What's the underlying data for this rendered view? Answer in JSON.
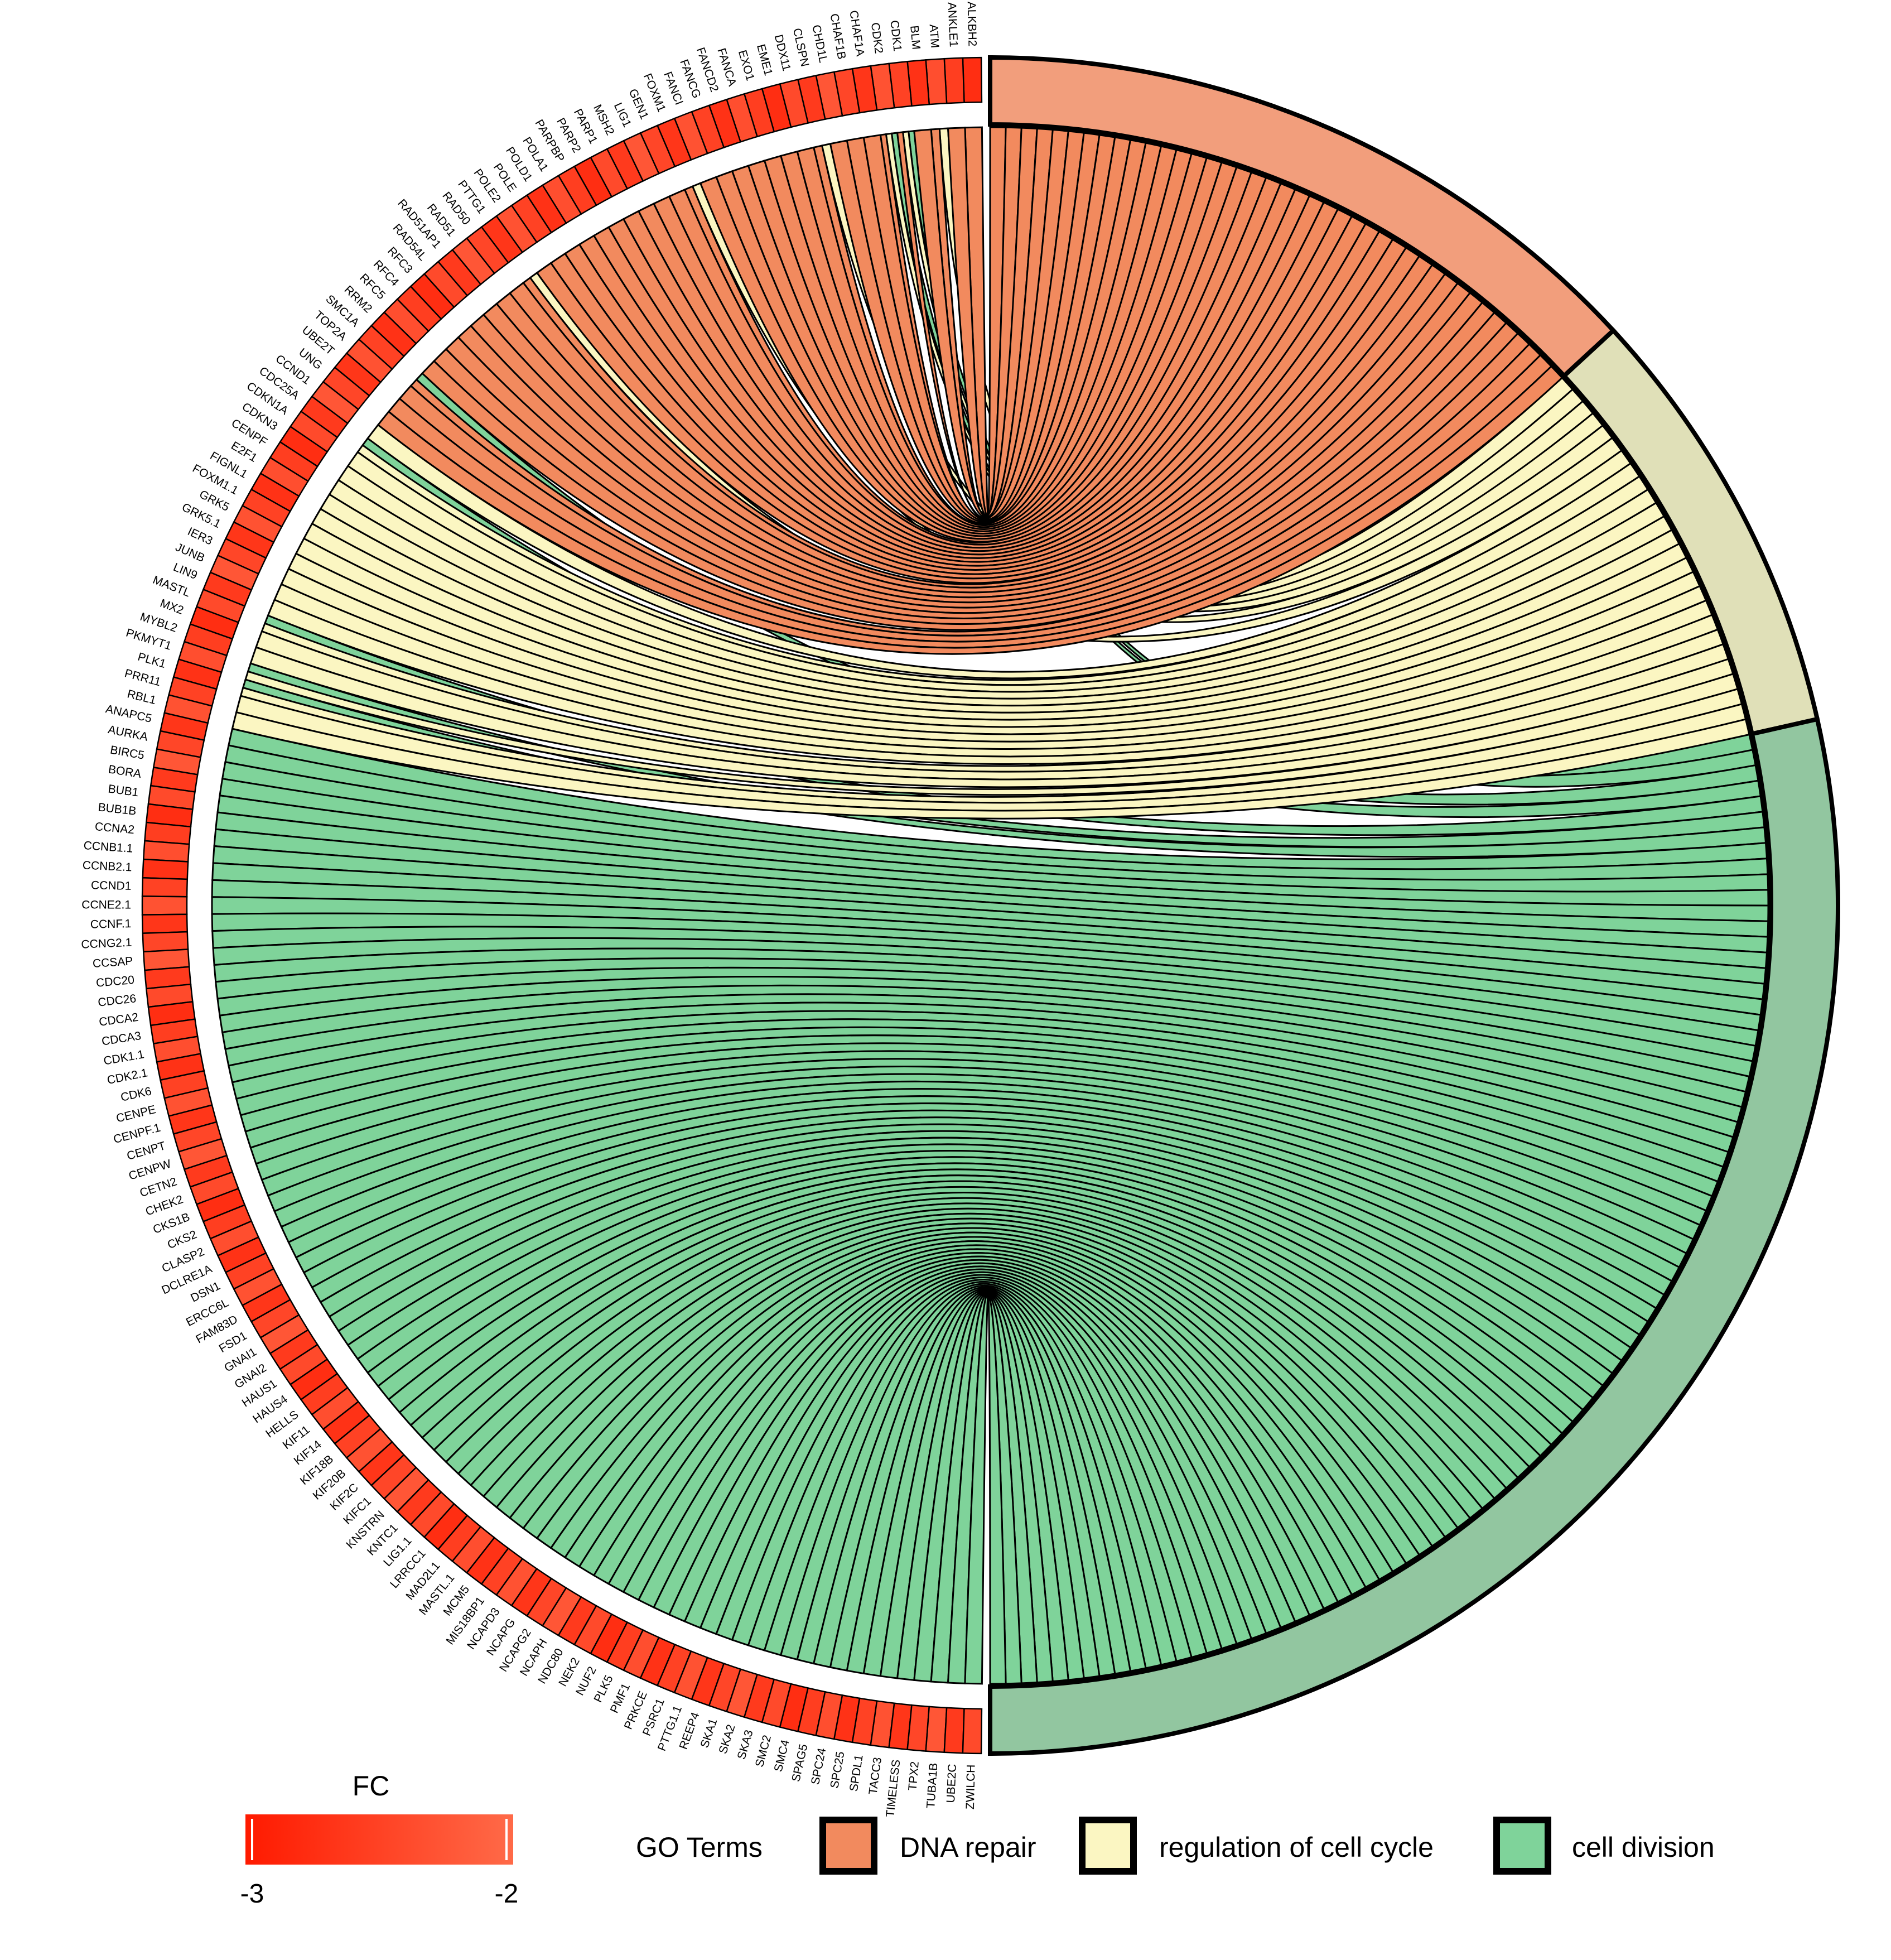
{
  "chart_data": {
    "type": "chord",
    "title": "",
    "genes": [
      {
        "name": "ALKBH2",
        "terms": [
          "DNA repair"
        ]
      },
      {
        "name": "ANKLE1",
        "terms": [
          "DNA repair"
        ]
      },
      {
        "name": "ATM",
        "terms": [
          "DNA repair",
          "regulation of cell cycle"
        ]
      },
      {
        "name": "BLM",
        "terms": [
          "DNA repair"
        ]
      },
      {
        "name": "CDK1",
        "terms": [
          "DNA repair",
          "regulation of cell cycle",
          "cell division"
        ]
      },
      {
        "name": "CDK2",
        "terms": [
          "DNA repair",
          "regulation of cell cycle",
          "cell division"
        ]
      },
      {
        "name": "CHAF1A",
        "terms": [
          "DNA repair"
        ]
      },
      {
        "name": "CHAF1B",
        "terms": [
          "DNA repair"
        ]
      },
      {
        "name": "CHD1L",
        "terms": [
          "DNA repair"
        ]
      },
      {
        "name": "CLSPN",
        "terms": [
          "DNA repair",
          "regulation of cell cycle"
        ]
      },
      {
        "name": "DDX11",
        "terms": [
          "DNA repair"
        ]
      },
      {
        "name": "EME1",
        "terms": [
          "DNA repair"
        ]
      },
      {
        "name": "EXO1",
        "terms": [
          "DNA repair"
        ]
      },
      {
        "name": "FANCA",
        "terms": [
          "DNA repair"
        ]
      },
      {
        "name": "FANCD2",
        "terms": [
          "DNA repair"
        ]
      },
      {
        "name": "FANCG",
        "terms": [
          "DNA repair"
        ]
      },
      {
        "name": "FANCI",
        "terms": [
          "DNA repair"
        ]
      },
      {
        "name": "FOXM1",
        "terms": [
          "DNA repair",
          "regulation of cell cycle"
        ]
      },
      {
        "name": "GEN1",
        "terms": [
          "DNA repair"
        ]
      },
      {
        "name": "LIG1",
        "terms": [
          "DNA repair"
        ]
      },
      {
        "name": "MSH2",
        "terms": [
          "DNA repair"
        ]
      },
      {
        "name": "PARP1",
        "terms": [
          "DNA repair"
        ]
      },
      {
        "name": "PARP2",
        "terms": [
          "DNA repair"
        ]
      },
      {
        "name": "PARPBP",
        "terms": [
          "DNA repair"
        ]
      },
      {
        "name": "POLA1",
        "terms": [
          "DNA repair"
        ]
      },
      {
        "name": "POLD1",
        "terms": [
          "DNA repair"
        ]
      },
      {
        "name": "POLE",
        "terms": [
          "DNA repair"
        ]
      },
      {
        "name": "POLE2",
        "terms": [
          "DNA repair"
        ]
      },
      {
        "name": "PTTG1",
        "terms": [
          "DNA repair",
          "regulation of cell cycle"
        ]
      },
      {
        "name": "RAD50",
        "terms": [
          "DNA repair"
        ]
      },
      {
        "name": "RAD51",
        "terms": [
          "DNA repair"
        ]
      },
      {
        "name": "RAD51AP1",
        "terms": [
          "DNA repair"
        ]
      },
      {
        "name": "RAD54L",
        "terms": [
          "DNA repair"
        ]
      },
      {
        "name": "RFC3",
        "terms": [
          "DNA repair"
        ]
      },
      {
        "name": "RFC4",
        "terms": [
          "DNA repair"
        ]
      },
      {
        "name": "RFC5",
        "terms": [
          "DNA repair"
        ]
      },
      {
        "name": "RRM2",
        "terms": [
          "DNA repair"
        ]
      },
      {
        "name": "SMC1A",
        "terms": [
          "DNA repair",
          "cell division"
        ]
      },
      {
        "name": "TOP2A",
        "terms": [
          "DNA repair"
        ]
      },
      {
        "name": "UBE2T",
        "terms": [
          "DNA repair"
        ]
      },
      {
        "name": "UNG",
        "terms": [
          "DNA repair"
        ]
      },
      {
        "name": "CCND1",
        "terms": [
          "regulation of cell cycle"
        ]
      },
      {
        "name": "CDC25A",
        "terms": [
          "regulation of cell cycle",
          "cell division"
        ]
      },
      {
        "name": "CDKN1A",
        "terms": [
          "regulation of cell cycle"
        ]
      },
      {
        "name": "CDKN3",
        "terms": [
          "regulation of cell cycle"
        ]
      },
      {
        "name": "CENPF",
        "terms": [
          "regulation of cell cycle"
        ]
      },
      {
        "name": "E2F1",
        "terms": [
          "regulation of cell cycle"
        ]
      },
      {
        "name": "FIGNL1",
        "terms": [
          "regulation of cell cycle"
        ]
      },
      {
        "name": "FOXM1.1",
        "terms": [
          "regulation of cell cycle"
        ]
      },
      {
        "name": "GRK5",
        "terms": [
          "regulation of cell cycle"
        ]
      },
      {
        "name": "GRK5.1",
        "terms": [
          "regulation of cell cycle"
        ]
      },
      {
        "name": "IER3",
        "terms": [
          "regulation of cell cycle"
        ]
      },
      {
        "name": "JUNB",
        "terms": [
          "regulation of cell cycle"
        ]
      },
      {
        "name": "LIN9",
        "terms": [
          "regulation of cell cycle"
        ]
      },
      {
        "name": "MASTL",
        "terms": [
          "regulation of cell cycle",
          "cell division"
        ]
      },
      {
        "name": "MX2",
        "terms": [
          "regulation of cell cycle"
        ]
      },
      {
        "name": "MYBL2",
        "terms": [
          "regulation of cell cycle"
        ]
      },
      {
        "name": "PKMYT1",
        "terms": [
          "regulation of cell cycle",
          "cell division"
        ]
      },
      {
        "name": "PLK1",
        "terms": [
          "regulation of cell cycle",
          "cell division"
        ]
      },
      {
        "name": "PRR11",
        "terms": [
          "regulation of cell cycle"
        ]
      },
      {
        "name": "RBL1",
        "terms": [
          "regulation of cell cycle"
        ]
      },
      {
        "name": "ANAPC5",
        "terms": [
          "cell division"
        ]
      },
      {
        "name": "AURKA",
        "terms": [
          "cell division"
        ]
      },
      {
        "name": "BIRC5",
        "terms": [
          "cell division"
        ]
      },
      {
        "name": "BORA",
        "terms": [
          "cell division"
        ]
      },
      {
        "name": "BUB1",
        "terms": [
          "cell division"
        ]
      },
      {
        "name": "BUB1B",
        "terms": [
          "cell division"
        ]
      },
      {
        "name": "CCNA2",
        "terms": [
          "cell division"
        ]
      },
      {
        "name": "CCNB1.1",
        "terms": [
          "cell division"
        ]
      },
      {
        "name": "CCNB2.1",
        "terms": [
          "cell division"
        ]
      },
      {
        "name": "CCND1",
        "terms": [
          "cell division"
        ]
      },
      {
        "name": "CCNE2.1",
        "terms": [
          "cell division"
        ]
      },
      {
        "name": "CCNF.1",
        "terms": [
          "cell division"
        ]
      },
      {
        "name": "CCNG2.1",
        "terms": [
          "cell division"
        ]
      },
      {
        "name": "CCSAP",
        "terms": [
          "cell division"
        ]
      },
      {
        "name": "CDC20",
        "terms": [
          "cell division"
        ]
      },
      {
        "name": "CDC26",
        "terms": [
          "cell division"
        ]
      },
      {
        "name": "CDCA2",
        "terms": [
          "cell division"
        ]
      },
      {
        "name": "CDCA3",
        "terms": [
          "cell division"
        ]
      },
      {
        "name": "CDK1.1",
        "terms": [
          "cell division"
        ]
      },
      {
        "name": "CDK2.1",
        "terms": [
          "cell division"
        ]
      },
      {
        "name": "CDK6",
        "terms": [
          "cell division"
        ]
      },
      {
        "name": "CENPE",
        "terms": [
          "cell division"
        ]
      },
      {
        "name": "CENPF.1",
        "terms": [
          "cell division"
        ]
      },
      {
        "name": "CENPT",
        "terms": [
          "cell division"
        ]
      },
      {
        "name": "CENPW",
        "terms": [
          "cell division"
        ]
      },
      {
        "name": "CETN2",
        "terms": [
          "cell division"
        ]
      },
      {
        "name": "CHEK2",
        "terms": [
          "cell division"
        ]
      },
      {
        "name": "CKS1B",
        "terms": [
          "cell division"
        ]
      },
      {
        "name": "CKS2",
        "terms": [
          "cell division"
        ]
      },
      {
        "name": "CLASP2",
        "terms": [
          "cell division"
        ]
      },
      {
        "name": "DCLRE1A",
        "terms": [
          "cell division"
        ]
      },
      {
        "name": "DSN1",
        "terms": [
          "cell division"
        ]
      },
      {
        "name": "ERCC6L",
        "terms": [
          "cell division"
        ]
      },
      {
        "name": "FAM83D",
        "terms": [
          "cell division"
        ]
      },
      {
        "name": "FSD1",
        "terms": [
          "cell division"
        ]
      },
      {
        "name": "GNAI1",
        "terms": [
          "cell division"
        ]
      },
      {
        "name": "GNAI2",
        "terms": [
          "cell division"
        ]
      },
      {
        "name": "HAUS1",
        "terms": [
          "cell division"
        ]
      },
      {
        "name": "HAUS4",
        "terms": [
          "cell division"
        ]
      },
      {
        "name": "HELLS",
        "terms": [
          "cell division"
        ]
      },
      {
        "name": "KIF11",
        "terms": [
          "cell division"
        ]
      },
      {
        "name": "KIF14",
        "terms": [
          "cell division"
        ]
      },
      {
        "name": "KIF18B",
        "terms": [
          "cell division"
        ]
      },
      {
        "name": "KIF20B",
        "terms": [
          "cell division"
        ]
      },
      {
        "name": "KIF2C",
        "terms": [
          "cell division"
        ]
      },
      {
        "name": "KIFC1",
        "terms": [
          "cell division"
        ]
      },
      {
        "name": "KNSTRN",
        "terms": [
          "cell division"
        ]
      },
      {
        "name": "KNTC1",
        "terms": [
          "cell division"
        ]
      },
      {
        "name": "LIG1.1",
        "terms": [
          "cell division"
        ]
      },
      {
        "name": "LRRCC1",
        "terms": [
          "cell division"
        ]
      },
      {
        "name": "MAD2L1",
        "terms": [
          "cell division"
        ]
      },
      {
        "name": "MASTL.1",
        "terms": [
          "cell division"
        ]
      },
      {
        "name": "MCM5",
        "terms": [
          "cell division"
        ]
      },
      {
        "name": "MIS18BP1",
        "terms": [
          "cell division"
        ]
      },
      {
        "name": "NCAPD3",
        "terms": [
          "cell division"
        ]
      },
      {
        "name": "NCAPG",
        "terms": [
          "cell division"
        ]
      },
      {
        "name": "NCAPG2",
        "terms": [
          "cell division"
        ]
      },
      {
        "name": "NCAPH",
        "terms": [
          "cell division"
        ]
      },
      {
        "name": "NDC80",
        "terms": [
          "cell division"
        ]
      },
      {
        "name": "NEK2",
        "terms": [
          "cell division"
        ]
      },
      {
        "name": "NUF2",
        "terms": [
          "cell division"
        ]
      },
      {
        "name": "PLK5",
        "terms": [
          "cell division"
        ]
      },
      {
        "name": "PMF1",
        "terms": [
          "cell division"
        ]
      },
      {
        "name": "PRKCE",
        "terms": [
          "cell division"
        ]
      },
      {
        "name": "PSRC1",
        "terms": [
          "cell division"
        ]
      },
      {
        "name": "PTTG1.1",
        "terms": [
          "cell division"
        ]
      },
      {
        "name": "REEP4",
        "terms": [
          "cell division"
        ]
      },
      {
        "name": "SKA1",
        "terms": [
          "cell division"
        ]
      },
      {
        "name": "SKA2",
        "terms": [
          "cell division"
        ]
      },
      {
        "name": "SKA3",
        "terms": [
          "cell division"
        ]
      },
      {
        "name": "SMC2",
        "terms": [
          "cell division"
        ]
      },
      {
        "name": "SMC4",
        "terms": [
          "cell division"
        ]
      },
      {
        "name": "SPAG5",
        "terms": [
          "cell division"
        ]
      },
      {
        "name": "SPC24",
        "terms": [
          "cell division"
        ]
      },
      {
        "name": "SPC25",
        "terms": [
          "cell division"
        ]
      },
      {
        "name": "SPDL1",
        "terms": [
          "cell division"
        ]
      },
      {
        "name": "TACC3",
        "terms": [
          "cell division"
        ]
      },
      {
        "name": "TIMELESS",
        "terms": [
          "cell division"
        ]
      },
      {
        "name": "TPX2",
        "terms": [
          "cell division"
        ]
      },
      {
        "name": "TUBA1B",
        "terms": [
          "cell division"
        ]
      },
      {
        "name": "UBE2C",
        "terms": [
          "cell division"
        ]
      },
      {
        "name": "ZWILCH",
        "terms": [
          "cell division"
        ]
      }
    ],
    "terms": [
      {
        "name": "DNA repair",
        "color": "#f29e7c",
        "link_color": "#f28a5e"
      },
      {
        "name": "regulation of cell cycle",
        "color": "#e0e0b8",
        "link_color": "#fbf6c2"
      },
      {
        "name": "cell division",
        "color": "#92c6a0",
        "link_color": "#7fd39a"
      }
    ],
    "fc_scale": {
      "title": "FC",
      "min": -3,
      "max": -2,
      "min_label": "-3",
      "max_label": "-2",
      "low_color": "#ff1a00",
      "high_color": "#ff6a48"
    },
    "legend": {
      "title": "GO Terms",
      "placement": "bottom"
    }
  }
}
